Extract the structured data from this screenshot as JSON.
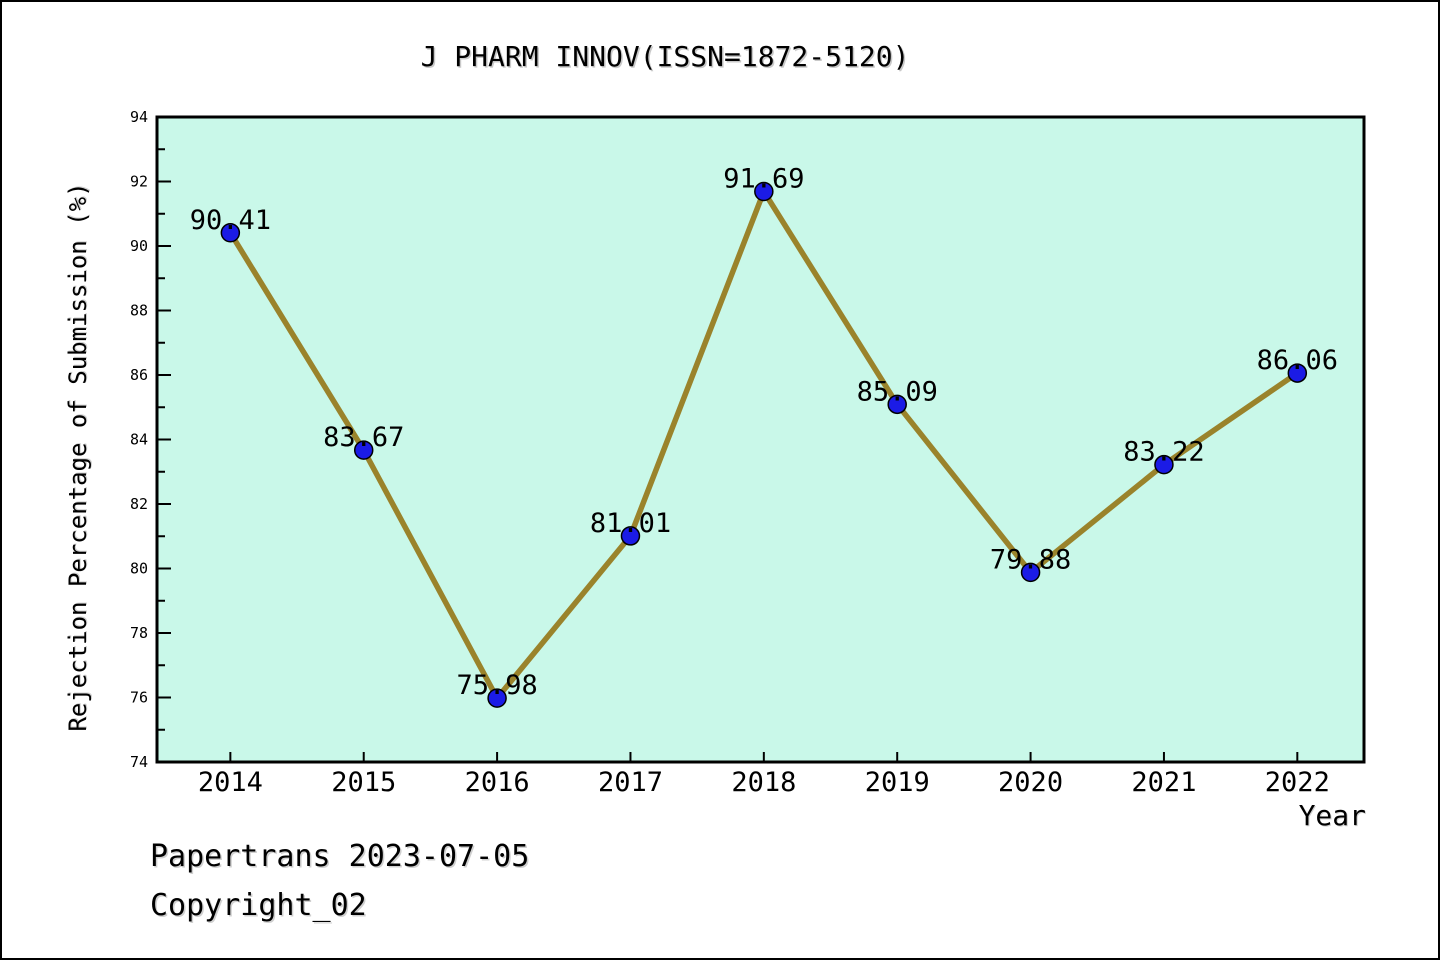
{
  "title": "J PHARM INNOV(ISSN=1872-5120)",
  "footer": {
    "line1": "Papertrans 2023-07-05",
    "line2": "Copyright_02"
  },
  "chart_data": {
    "type": "line",
    "title": "J PHARM INNOV(ISSN=1872-5120)",
    "xlabel": "Year",
    "ylabel": "Rejection Percentage of Submission (%)",
    "categories": [
      2014,
      2015,
      2016,
      2017,
      2018,
      2019,
      2020,
      2021,
      2022
    ],
    "values": [
      90.41,
      83.67,
      75.98,
      81.01,
      91.69,
      85.09,
      79.88,
      83.22,
      86.06
    ],
    "point_labels": [
      "90.41",
      "83.67",
      "75.98",
      "81.01",
      "91.69",
      "85.09",
      "79.88",
      "83.22",
      "86.06"
    ],
    "xlim": [
      2013.45,
      2022.5
    ],
    "ylim": [
      74,
      94
    ],
    "y_major_ticks": [
      74,
      76,
      78,
      80,
      82,
      84,
      86,
      88,
      90,
      92,
      94
    ],
    "y_minor_ticks": [
      75,
      77,
      79,
      81,
      83,
      85,
      87,
      89,
      91,
      93
    ],
    "grid": false,
    "legend": null,
    "colors": {
      "line": "#9a832b",
      "marker": "#1b1be6",
      "marker_edge": "#000000",
      "plot_bg": "#c9f8e9",
      "axis": "#000000"
    }
  }
}
